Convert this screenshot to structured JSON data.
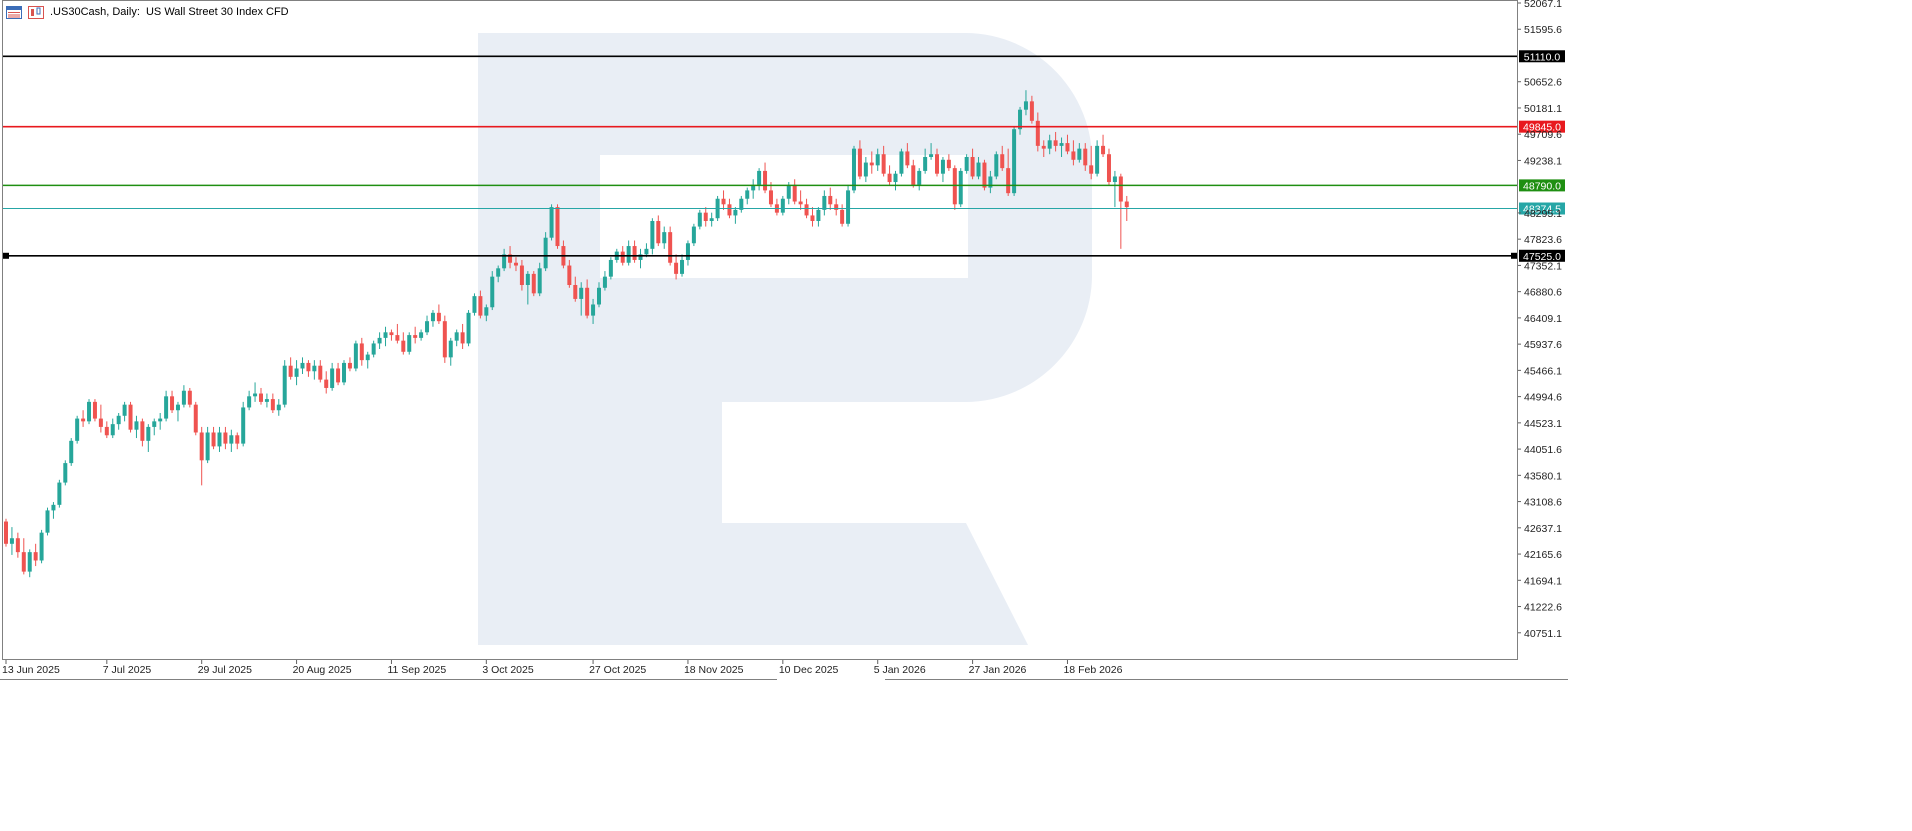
{
  "window": {
    "symbol": ".US30Cash",
    "timeframe": "Daily",
    "description": "US Wall Street 30 Index CFD"
  },
  "colors": {
    "bull": "#26a69a",
    "bear": "#ef5350",
    "grid": "#e6e6e6",
    "watermark": "#e9eef5"
  },
  "chart_data": {
    "type": "candlestick",
    "title": ".US30Cash, Daily:  US Wall Street 30 Index CFD",
    "ylim": [
      40280,
      52067.1
    ],
    "y_ticks": [
      52067.1,
      51595.6,
      50652.6,
      50181.1,
      49709.6,
      49238.1,
      48295.1,
      47823.6,
      47352.1,
      46880.6,
      46409.1,
      45937.6,
      45466.1,
      44994.6,
      44523.1,
      44051.6,
      43580.1,
      43108.6,
      42637.1,
      42165.6,
      41694.1,
      41222.6,
      40751.1
    ],
    "x_labels": [
      "13 Jun 2025",
      "7 Jul 2025",
      "29 Jul 2025",
      "20 Aug 2025",
      "11 Sep 2025",
      "3 Oct 2025",
      "27 Oct 2025",
      "18 Nov 2025",
      "10 Dec 2025",
      "5 Jan 2026",
      "27 Jan 2026",
      "18 Feb 2026"
    ],
    "x_label_index": [
      0,
      17,
      33,
      49,
      65,
      81,
      99,
      115,
      131,
      147,
      163,
      179
    ],
    "levels": [
      {
        "value": 51110.0,
        "label": "51110.0",
        "color": "#000000"
      },
      {
        "value": 49845.0,
        "label": "49845.0",
        "color": "#e8191e"
      },
      {
        "value": 48790.0,
        "label": "48790.0",
        "color": "#1f8f12"
      },
      {
        "value": 48374.5,
        "label": "48374.5",
        "color": "#26a6a6"
      },
      {
        "value": 47525.0,
        "label": "47525.0",
        "color": "#000000"
      }
    ],
    "candles": [
      [
        42750,
        42800,
        42300,
        42350
      ],
      [
        42350,
        42650,
        42150,
        42450
      ],
      [
        42450,
        42550,
        42100,
        42200
      ],
      [
        42200,
        42450,
        41800,
        41850
      ],
      [
        41850,
        42250,
        41750,
        42200
      ],
      [
        42200,
        42350,
        41950,
        42050
      ],
      [
        42050,
        42600,
        42000,
        42550
      ],
      [
        42550,
        43000,
        42500,
        42950
      ],
      [
        42950,
        43100,
        42800,
        43050
      ],
      [
        43050,
        43500,
        43000,
        43450
      ],
      [
        43450,
        43850,
        43400,
        43800
      ],
      [
        43800,
        44250,
        43750,
        44200
      ],
      [
        44200,
        44650,
        44150,
        44600
      ],
      [
        44600,
        44750,
        44450,
        44550
      ],
      [
        44550,
        44950,
        44500,
        44900
      ],
      [
        44900,
        44950,
        44550,
        44600
      ],
      [
        44600,
        44850,
        44350,
        44450
      ],
      [
        44450,
        44550,
        44250,
        44300
      ],
      [
        44300,
        44600,
        44250,
        44500
      ],
      [
        44500,
        44700,
        44400,
        44650
      ],
      [
        44650,
        44900,
        44550,
        44850
      ],
      [
        44850,
        44900,
        44350,
        44400
      ],
      [
        44400,
        44650,
        44250,
        44550
      ],
      [
        44550,
        44600,
        44100,
        44200
      ],
      [
        44200,
        44500,
        44000,
        44450
      ],
      [
        44450,
        44600,
        44300,
        44550
      ],
      [
        44550,
        44700,
        44400,
        44600
      ],
      [
        44600,
        45100,
        44550,
        45000
      ],
      [
        45000,
        45100,
        44700,
        44750
      ],
      [
        44750,
        44900,
        44550,
        44850
      ],
      [
        44850,
        45200,
        44800,
        45100
      ],
      [
        45100,
        45150,
        44800,
        44850
      ],
      [
        44850,
        44900,
        44300,
        44350
      ],
      [
        44350,
        44450,
        43400,
        43850
      ],
      [
        43850,
        44450,
        43800,
        44350
      ],
      [
        44350,
        44450,
        44050,
        44100
      ],
      [
        44100,
        44450,
        44000,
        44350
      ],
      [
        44350,
        44450,
        44050,
        44150
      ],
      [
        44150,
        44400,
        44000,
        44300
      ],
      [
        44300,
        44350,
        44050,
        44150
      ],
      [
        44150,
        44900,
        44100,
        44800
      ],
      [
        44800,
        45100,
        44750,
        45000
      ],
      [
        45000,
        45250,
        44900,
        45050
      ],
      [
        45050,
        45150,
        44850,
        44900
      ],
      [
        44900,
        45050,
        44800,
        44950
      ],
      [
        44950,
        45050,
        44700,
        44750
      ],
      [
        44750,
        44950,
        44650,
        44850
      ],
      [
        44850,
        45650,
        44800,
        45550
      ],
      [
        45550,
        45700,
        45300,
        45350
      ],
      [
        45350,
        45650,
        45200,
        45500
      ],
      [
        45500,
        45700,
        45400,
        45600
      ],
      [
        45600,
        45650,
        45350,
        45450
      ],
      [
        45450,
        45650,
        45300,
        45550
      ],
      [
        45550,
        45650,
        45250,
        45300
      ],
      [
        45300,
        45450,
        45050,
        45150
      ],
      [
        45150,
        45600,
        45100,
        45500
      ],
      [
        45500,
        45600,
        45200,
        45250
      ],
      [
        45250,
        45650,
        45200,
        45600
      ],
      [
        45600,
        45700,
        45450,
        45500
      ],
      [
        45500,
        46000,
        45450,
        45950
      ],
      [
        45950,
        46050,
        45550,
        45650
      ],
      [
        45650,
        45800,
        45500,
        45750
      ],
      [
        45750,
        46000,
        45700,
        45950
      ],
      [
        45950,
        46150,
        45850,
        46050
      ],
      [
        46050,
        46250,
        45900,
        46150
      ],
      [
        46150,
        46200,
        46000,
        46100
      ],
      [
        46100,
        46300,
        45950,
        46000
      ],
      [
        46000,
        46150,
        45750,
        45800
      ],
      [
        45800,
        46150,
        45750,
        46100
      ],
      [
        46100,
        46250,
        45950,
        46050
      ],
      [
        46050,
        46200,
        46000,
        46150
      ],
      [
        46150,
        46450,
        46100,
        46350
      ],
      [
        46350,
        46550,
        46250,
        46500
      ],
      [
        46500,
        46650,
        46300,
        46350
      ],
      [
        46350,
        46450,
        45600,
        45700
      ],
      [
        45700,
        46050,
        45550,
        46000
      ],
      [
        46000,
        46200,
        45900,
        46150
      ],
      [
        46150,
        46300,
        45850,
        45950
      ],
      [
        45950,
        46550,
        45900,
        46500
      ],
      [
        46500,
        46850,
        46450,
        46800
      ],
      [
        46800,
        46900,
        46400,
        46450
      ],
      [
        46450,
        46650,
        46350,
        46600
      ],
      [
        46600,
        47250,
        46550,
        47150
      ],
      [
        47150,
        47350,
        47050,
        47300
      ],
      [
        47300,
        47650,
        47250,
        47550
      ],
      [
        47550,
        47700,
        47300,
        47400
      ],
      [
        47400,
        47500,
        47250,
        47350
      ],
      [
        47350,
        47450,
        46900,
        47000
      ],
      [
        47000,
        47250,
        46650,
        47200
      ],
      [
        47200,
        47250,
        46800,
        46850
      ],
      [
        46850,
        47400,
        46800,
        47300
      ],
      [
        47300,
        47950,
        47250,
        47850
      ],
      [
        47850,
        48450,
        47800,
        48400
      ],
      [
        48400,
        48450,
        47650,
        47700
      ],
      [
        47700,
        47800,
        47300,
        47350
      ],
      [
        47350,
        47450,
        46950,
        47000
      ],
      [
        47000,
        47150,
        46700,
        46750
      ],
      [
        46750,
        47050,
        46450,
        46950
      ],
      [
        46950,
        47100,
        46400,
        46450
      ],
      [
        46450,
        46750,
        46300,
        46650
      ],
      [
        46650,
        47050,
        46600,
        46950
      ],
      [
        46950,
        47250,
        46900,
        47150
      ],
      [
        47150,
        47500,
        47100,
        47450
      ],
      [
        47450,
        47650,
        47400,
        47600
      ],
      [
        47600,
        47700,
        47350,
        47400
      ],
      [
        47400,
        47800,
        47350,
        47700
      ],
      [
        47700,
        47800,
        47400,
        47450
      ],
      [
        47450,
        47650,
        47300,
        47550
      ],
      [
        47550,
        47750,
        47500,
        47650
      ],
      [
        47650,
        48200,
        47550,
        48150
      ],
      [
        48150,
        48250,
        47700,
        47750
      ],
      [
        47750,
        48050,
        47650,
        47950
      ],
      [
        47950,
        48050,
        47350,
        47400
      ],
      [
        47400,
        47550,
        47100,
        47200
      ],
      [
        47200,
        47550,
        47150,
        47450
      ],
      [
        47450,
        47800,
        47350,
        47750
      ],
      [
        47750,
        48100,
        47700,
        48050
      ],
      [
        48050,
        48350,
        48000,
        48300
      ],
      [
        48300,
        48400,
        48050,
        48150
      ],
      [
        48150,
        48300,
        48050,
        48200
      ],
      [
        48200,
        48600,
        48150,
        48550
      ],
      [
        48550,
        48700,
        48350,
        48450
      ],
      [
        48450,
        48550,
        48200,
        48250
      ],
      [
        48250,
        48400,
        48100,
        48350
      ],
      [
        48350,
        48600,
        48300,
        48550
      ],
      [
        48550,
        48750,
        48450,
        48700
      ],
      [
        48700,
        48900,
        48550,
        48800
      ],
      [
        48800,
        49100,
        48700,
        49050
      ],
      [
        49050,
        49200,
        48650,
        48700
      ],
      [
        48700,
        48850,
        48400,
        48450
      ],
      [
        48450,
        48550,
        48250,
        48300
      ],
      [
        48300,
        48600,
        48250,
        48550
      ],
      [
        48550,
        48850,
        48450,
        48800
      ],
      [
        48800,
        48900,
        48450,
        48500
      ],
      [
        48500,
        48700,
        48350,
        48450
      ],
      [
        48450,
        48550,
        48200,
        48250
      ],
      [
        48250,
        48400,
        48050,
        48150
      ],
      [
        48150,
        48400,
        48050,
        48350
      ],
      [
        48350,
        48700,
        48250,
        48600
      ],
      [
        48600,
        48750,
        48350,
        48450
      ],
      [
        48450,
        48550,
        48250,
        48350
      ],
      [
        48350,
        48450,
        48050,
        48100
      ],
      [
        48100,
        48800,
        48050,
        48700
      ],
      [
        48700,
        49500,
        48650,
        49450
      ],
      [
        49450,
        49600,
        48900,
        48950
      ],
      [
        48950,
        49300,
        48850,
        49200
      ],
      [
        49200,
        49400,
        49000,
        49150
      ],
      [
        49150,
        49450,
        49050,
        49350
      ],
      [
        49350,
        49500,
        48950,
        49000
      ],
      [
        49000,
        49150,
        48800,
        48850
      ],
      [
        48850,
        49050,
        48700,
        49000
      ],
      [
        49000,
        49450,
        48950,
        49400
      ],
      [
        49400,
        49550,
        49100,
        49150
      ],
      [
        49150,
        49250,
        48750,
        48800
      ],
      [
        48800,
        49100,
        48700,
        49050
      ],
      [
        49050,
        49450,
        49000,
        49300
      ],
      [
        49300,
        49550,
        49250,
        49350
      ],
      [
        49350,
        49450,
        48950,
        49000
      ],
      [
        49000,
        49300,
        48850,
        49250
      ],
      [
        49250,
        49350,
        49050,
        49100
      ],
      [
        49100,
        49150,
        48350,
        48450
      ],
      [
        48450,
        49100,
        48400,
        49050
      ],
      [
        49050,
        49350,
        49000,
        49300
      ],
      [
        49300,
        49450,
        48900,
        48950
      ],
      [
        48950,
        49300,
        48900,
        49200
      ],
      [
        49200,
        49250,
        48700,
        48750
      ],
      [
        48750,
        49050,
        48650,
        48950
      ],
      [
        48950,
        49400,
        48900,
        49350
      ],
      [
        49350,
        49500,
        49050,
        49100
      ],
      [
        49100,
        49450,
        48600,
        48650
      ],
      [
        48650,
        49850,
        48600,
        49800
      ],
      [
        49800,
        50200,
        49700,
        50150
      ],
      [
        50150,
        50500,
        50050,
        50300
      ],
      [
        50300,
        50400,
        49900,
        49950
      ],
      [
        49950,
        50100,
        49400,
        49500
      ],
      [
        49500,
        49600,
        49300,
        49450
      ],
      [
        49450,
        49700,
        49350,
        49600
      ],
      [
        49600,
        49750,
        49400,
        49500
      ],
      [
        49500,
        49650,
        49300,
        49550
      ],
      [
        49550,
        49700,
        49350,
        49400
      ],
      [
        49400,
        49600,
        49150,
        49250
      ],
      [
        49250,
        49550,
        49200,
        49450
      ],
      [
        49450,
        49550,
        49050,
        49150
      ],
      [
        49150,
        49500,
        48900,
        49000
      ],
      [
        49000,
        49600,
        48950,
        49500
      ],
      [
        49500,
        49700,
        49300,
        49350
      ],
      [
        49350,
        49450,
        48800,
        48850
      ],
      [
        48850,
        49050,
        48400,
        48950
      ],
      [
        48950,
        49000,
        47650,
        48500
      ],
      [
        48500,
        48600,
        48150,
        48400
      ]
    ]
  }
}
